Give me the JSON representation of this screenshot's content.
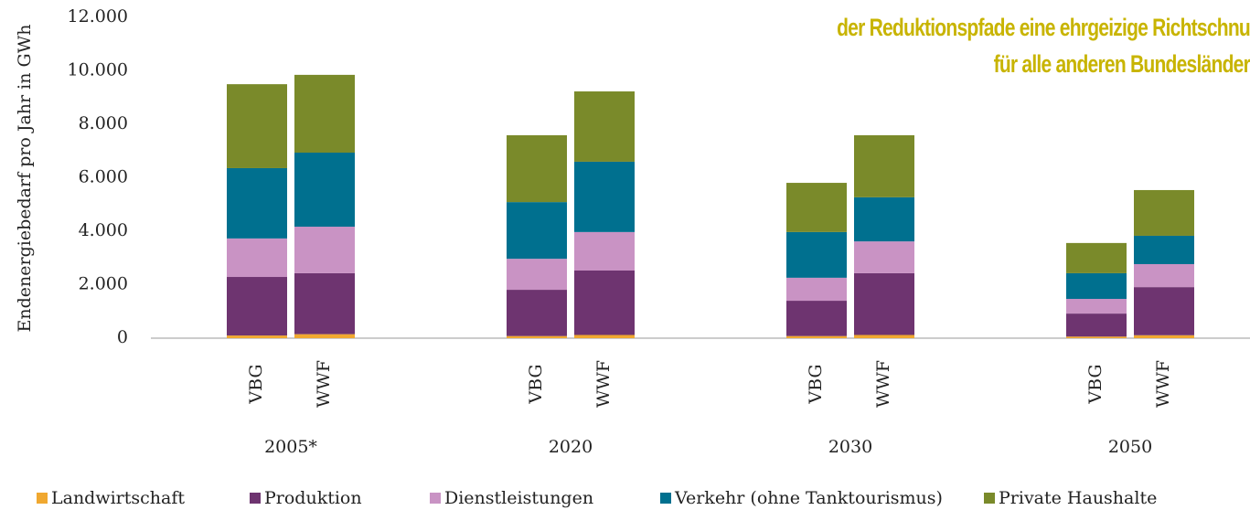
{
  "chart_data": {
    "type": "stacked_bar",
    "y_label": "Endenergiebedarf pro Jahr in GWh",
    "annotations": [
      "der Reduktionspfade eine ehrgeizige Richtschnu",
      "für alle anderen Bundesländer"
    ],
    "groups": [
      "2005*",
      "2020",
      "2030",
      "2050"
    ],
    "categories": [
      "VBG",
      "WWF",
      "VBG",
      "WWF",
      "VBG",
      "WWF",
      "VBG",
      "WWF"
    ],
    "series": [
      {
        "name": "Landwirtschaft",
        "color": "#f0a830",
        "values": [
          100,
          150,
          80,
          120,
          80,
          120,
          60,
          110
        ]
      },
      {
        "name": "Produktion",
        "color": "#6e3470",
        "values": [
          2190,
          2280,
          1730,
          2410,
          1320,
          2310,
          860,
          1800
        ]
      },
      {
        "name": "Dienstleistungen",
        "color": "#c993c4",
        "values": [
          1440,
          1740,
          1160,
          1440,
          860,
          1190,
          550,
          860
        ]
      },
      {
        "name": "Verkehr (ohne Tanktourismus)",
        "color": "#00708f",
        "values": [
          2630,
          2770,
          2120,
          2630,
          1710,
          1650,
          960,
          1060
        ]
      },
      {
        "name": "Private Haushalte",
        "color": "#7a8a2a",
        "values": [
          3140,
          2910,
          2500,
          2630,
          1840,
          2320,
          1130,
          1710
        ]
      }
    ],
    "ylim": [
      0,
      12000
    ],
    "yticks": [
      0,
      {
        "value": 2000,
        "label": "2.000"
      },
      {
        "value": 4000,
        "label": "4.000"
      },
      {
        "value": 6000,
        "label": "6.000"
      },
      {
        "value": 8000,
        "label": "8.000"
      },
      {
        "value": 10000,
        "label": "10.000"
      },
      {
        "value": 12000,
        "label": "12.000"
      }
    ],
    "legend": "bottom"
  }
}
